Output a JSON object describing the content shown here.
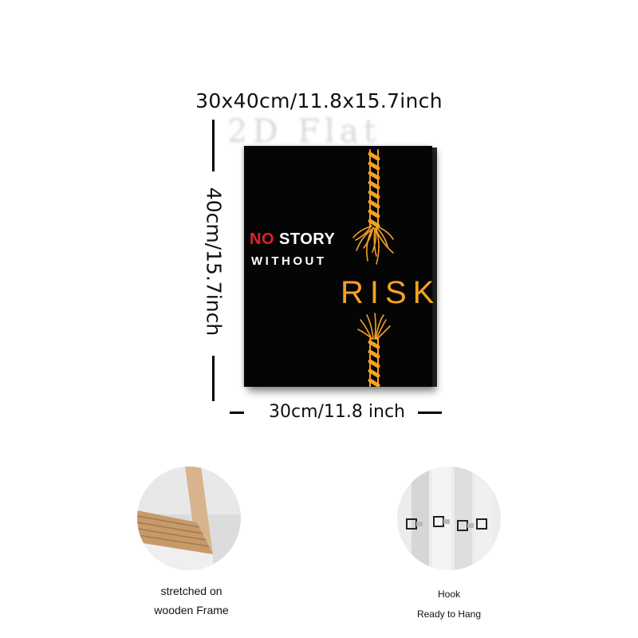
{
  "dimensions": {
    "top": "30x40cm/11.8x15.7inch",
    "side": "40cm/15.7inch",
    "bottom": "30cm/11.8 inch"
  },
  "watermark": "2D Flat",
  "poster": {
    "line1_red": "NO",
    "line1_white": " STORY",
    "line2": "WITHOUT",
    "line3": "RISK",
    "colors": {
      "background": "#050505",
      "red": "#e32226",
      "orange": "#f5a124",
      "white": "#ffffff"
    }
  },
  "details": [
    {
      "icon": "wooden-frame-corner-photo",
      "caption_1": "stretched on",
      "caption_2": "wooden Frame"
    },
    {
      "icon": "hook-photo",
      "caption_1": "Hook",
      "caption_2": "Ready to Hang"
    }
  ]
}
